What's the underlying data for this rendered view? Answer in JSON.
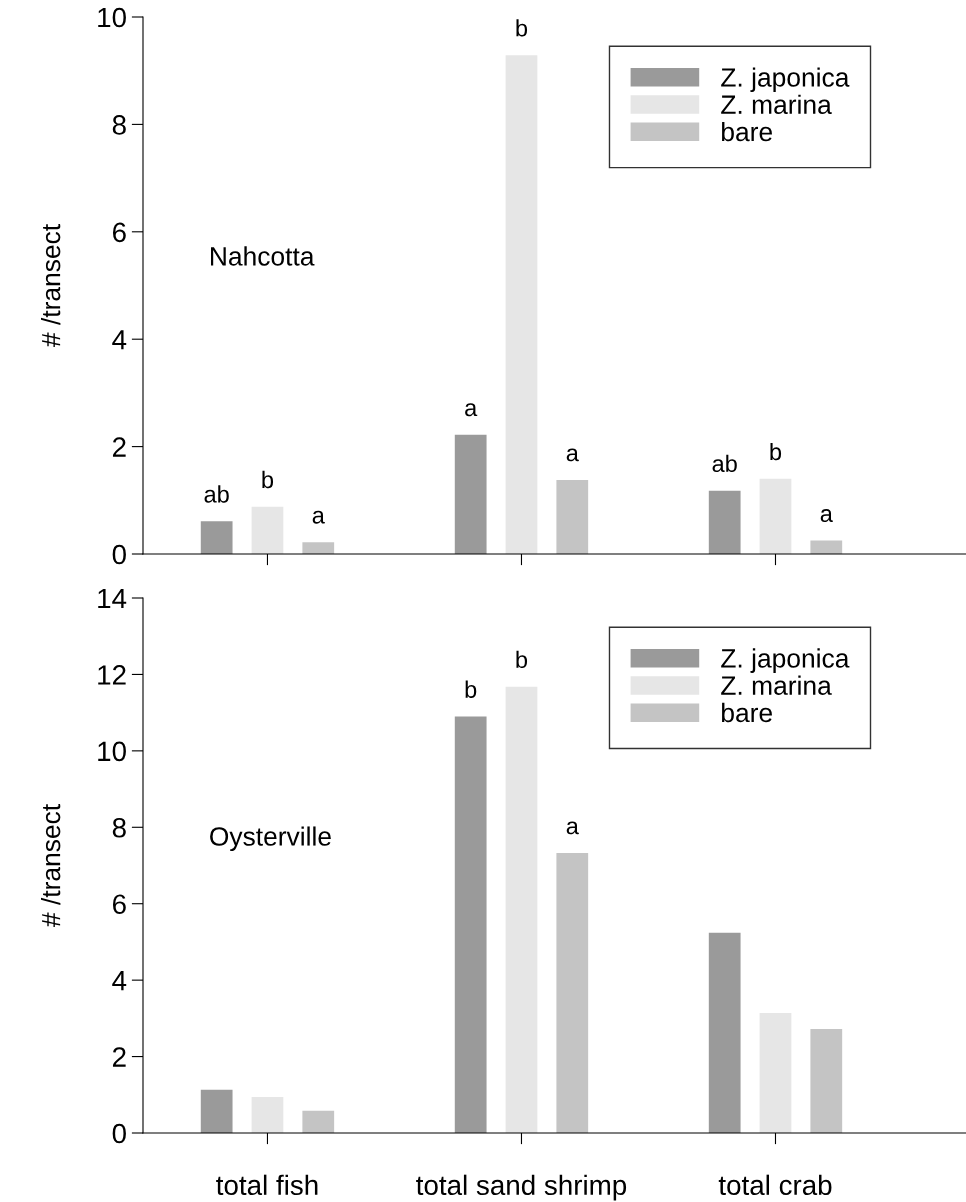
{
  "chart_data": [
    {
      "type": "bar",
      "ylabel": "# /transect",
      "categories": [
        null,
        null,
        null
      ],
      "series": [
        {
          "name": "Z. japonica",
          "color": "#9a9a9a",
          "values": [
            0.61,
            2.22,
            1.18
          ],
          "value_labels": [
            "ab",
            "a",
            "ab"
          ]
        },
        {
          "name": "Z. marina",
          "color": "#e6e6e6",
          "values": [
            0.88,
            9.29,
            1.4
          ],
          "value_labels": [
            "b",
            "b",
            "b"
          ]
        },
        {
          "name": "bare",
          "color": "#c4c4c4",
          "values": [
            0.22,
            1.38,
            0.25
          ],
          "value_labels": [
            "a",
            "a",
            "a"
          ]
        }
      ],
      "ylim": [
        0,
        10
      ],
      "yticks": [
        0,
        2,
        4,
        6,
        8,
        10
      ],
      "legend": "top right",
      "tick_labels": "y",
      "annotations": [
        "Nahcotta"
      ]
    },
    {
      "type": "bar",
      "ylabel": "# /transect",
      "categories": [
        "total fish",
        "total sand shrimp",
        "total crab"
      ],
      "series": [
        {
          "name": "Z. japonica",
          "color": "#9a9a9a",
          "values": [
            1.13,
            10.9,
            5.24
          ],
          "value_labels": [
            null,
            "b",
            null
          ]
        },
        {
          "name": "Z. marina",
          "color": "#e6e6e6",
          "values": [
            0.94,
            11.68,
            3.14
          ],
          "value_labels": [
            null,
            "b",
            null
          ]
        },
        {
          "name": "bare",
          "color": "#c4c4c4",
          "values": [
            0.58,
            7.33,
            2.72
          ],
          "value_labels": [
            null,
            "a",
            null
          ]
        }
      ],
      "ylim": [
        0,
        14
      ],
      "yticks": [
        0,
        2,
        4,
        6,
        8,
        10,
        12,
        14
      ],
      "legend": "top right",
      "annotations": [
        "Oysterville"
      ]
    }
  ]
}
